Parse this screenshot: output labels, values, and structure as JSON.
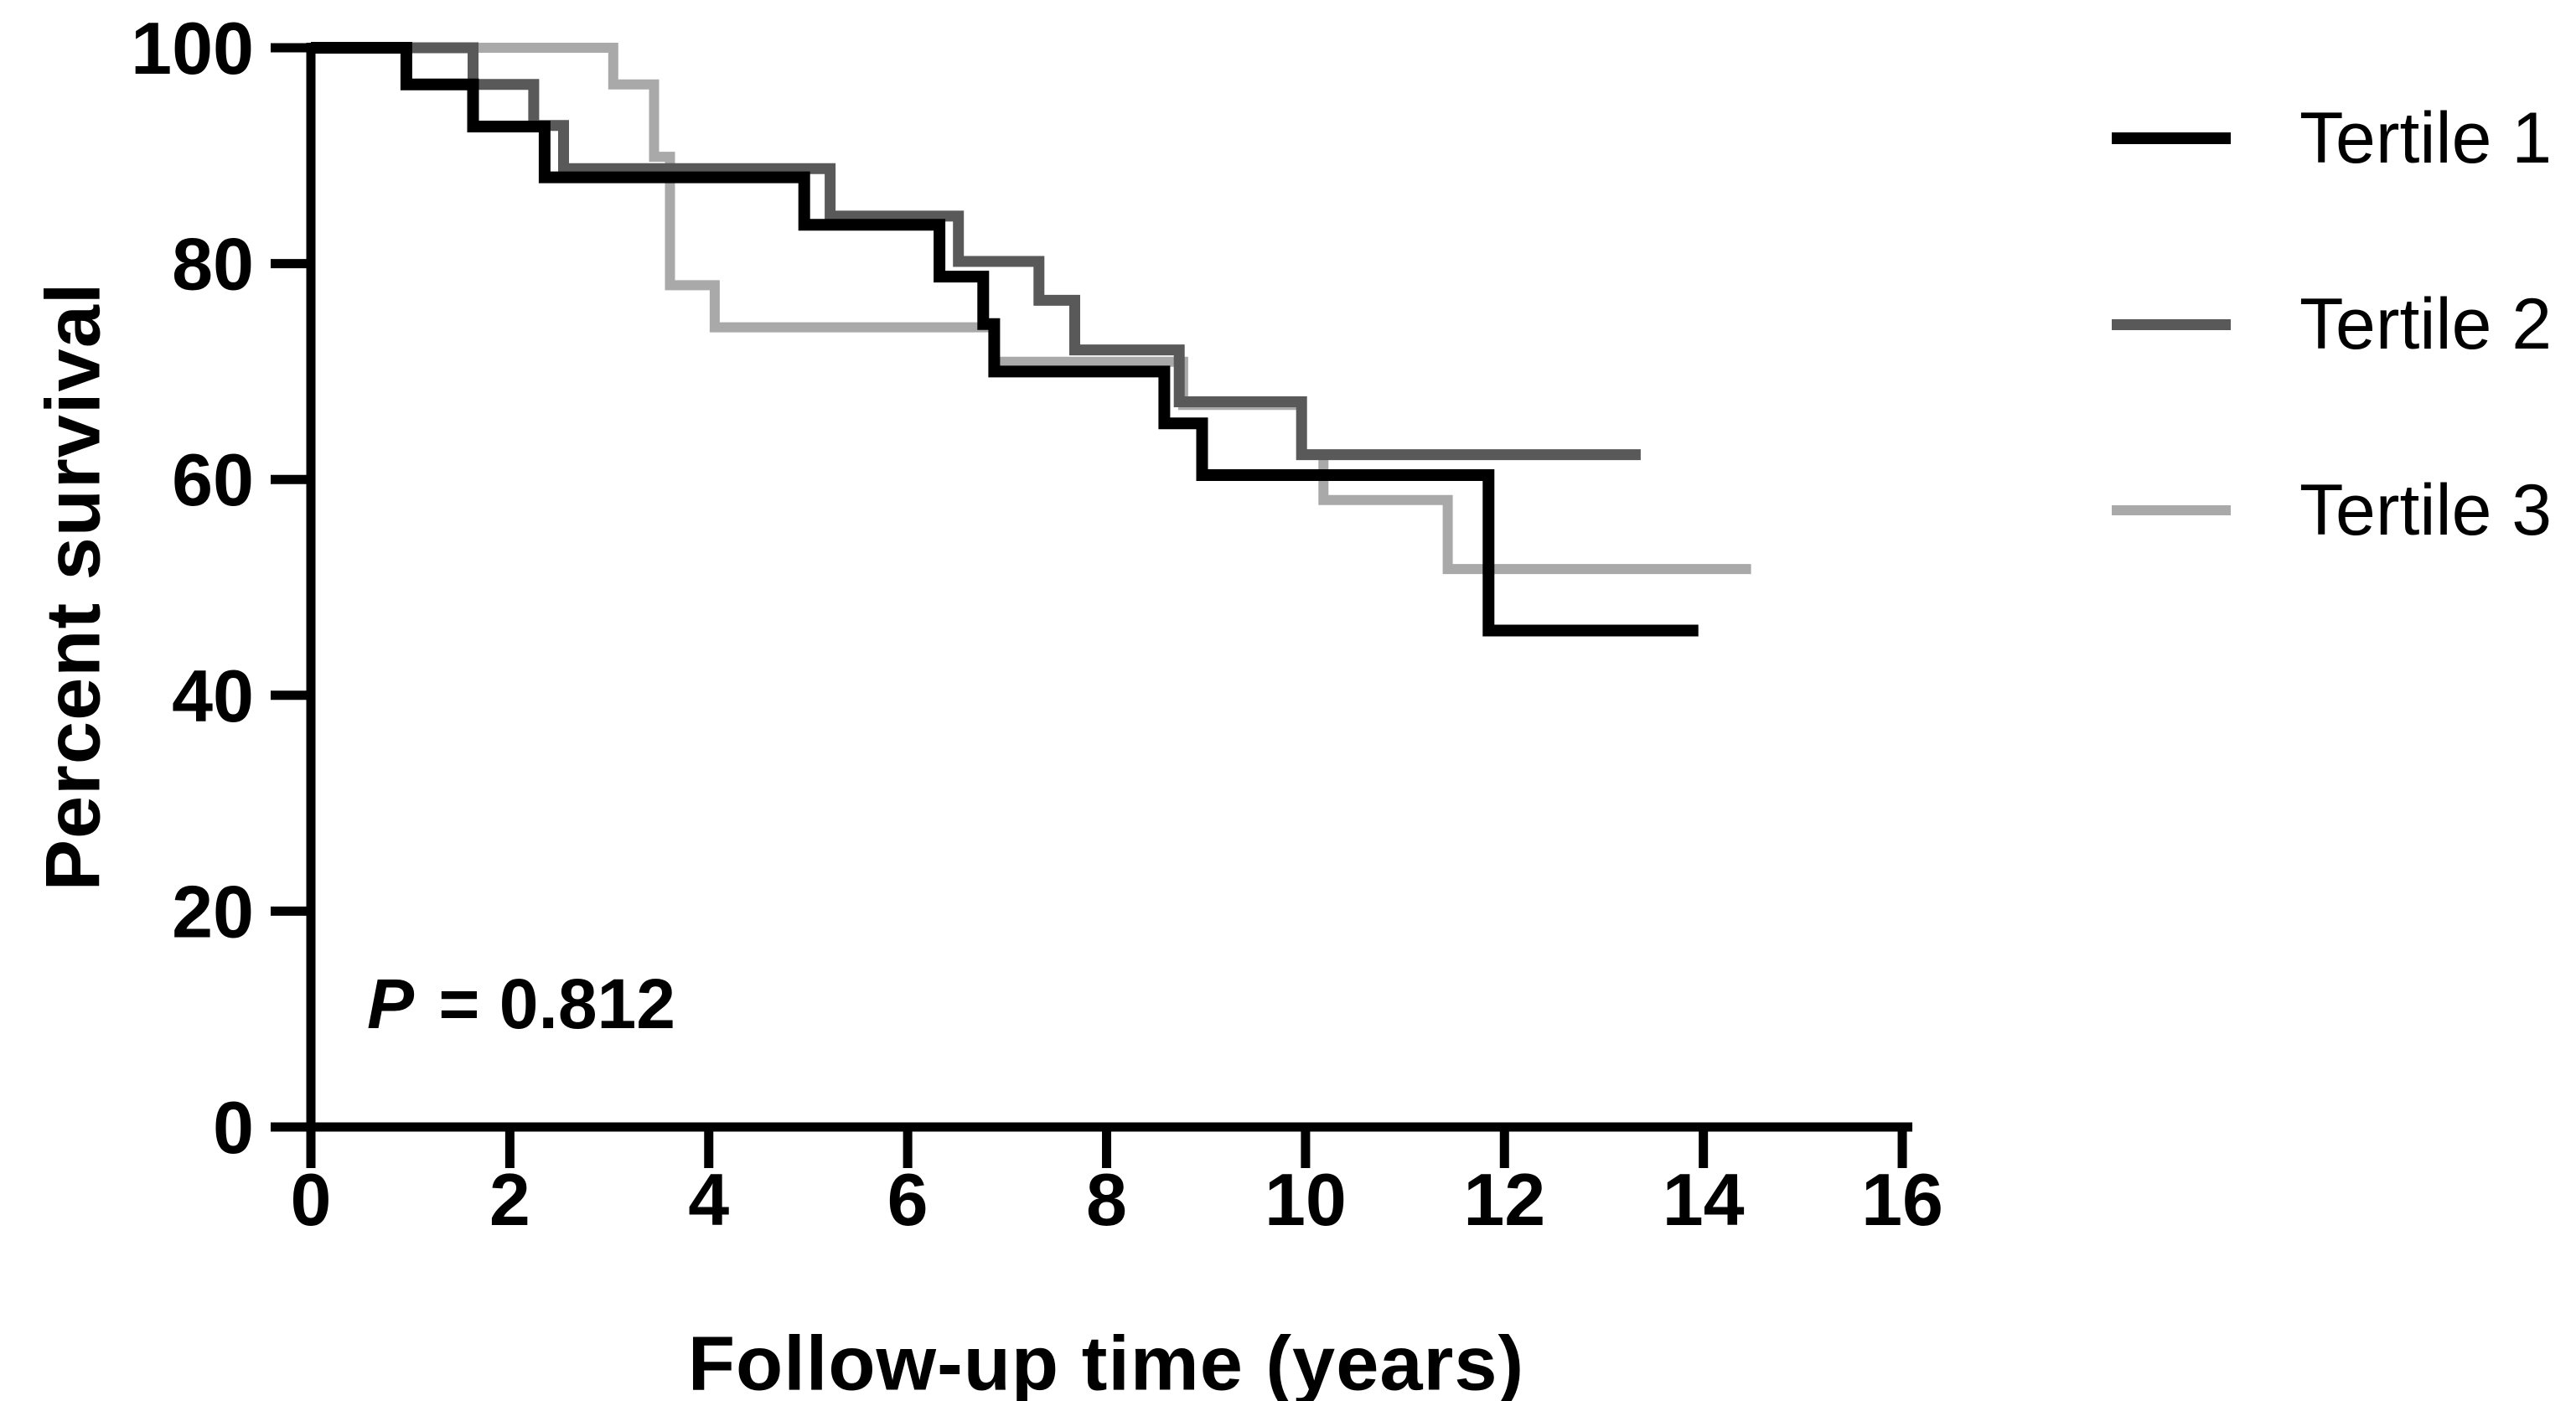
{
  "chart_data": {
    "type": "line",
    "subtype": "kaplan-meier-step-survival",
    "title": "",
    "xlabel": "Follow-up time (years)",
    "ylabel": "Percent survival",
    "xlim": [
      0,
      16
    ],
    "ylim": [
      0,
      100
    ],
    "x_ticks": [
      0,
      2,
      4,
      6,
      8,
      10,
      12,
      14,
      16
    ],
    "y_ticks": [
      0,
      20,
      40,
      60,
      80,
      100
    ],
    "grid": false,
    "legend_position": "outside-top-right",
    "axis_color": "#000000",
    "annotation": {
      "p_symbol": "P",
      "p_rest": " = 0.812"
    },
    "series": [
      {
        "name": "Tertile 1",
        "color": "#000000",
        "line_width": 14,
        "points": [
          [
            0,
            100
          ],
          [
            0.96,
            100
          ],
          [
            0.96,
            96.6
          ],
          [
            1.63,
            96.6
          ],
          [
            1.63,
            92.7
          ],
          [
            2.35,
            92.7
          ],
          [
            2.35,
            88.0
          ],
          [
            4.96,
            88.0
          ],
          [
            4.96,
            83.6
          ],
          [
            6.32,
            83.6
          ],
          [
            6.32,
            78.8
          ],
          [
            6.76,
            78.8
          ],
          [
            6.76,
            74.4
          ],
          [
            6.87,
            74.4
          ],
          [
            6.87,
            70.0
          ],
          [
            8.58,
            70.0
          ],
          [
            8.58,
            65.2
          ],
          [
            8.96,
            65.2
          ],
          [
            8.96,
            60.4
          ],
          [
            11.84,
            60.4
          ],
          [
            11.84,
            46.0
          ],
          [
            13.95,
            46.0
          ]
        ]
      },
      {
        "name": "Tertile 2",
        "color": "#595959",
        "line_width": 13,
        "points": [
          [
            0,
            100
          ],
          [
            1.63,
            100
          ],
          [
            1.63,
            96.6
          ],
          [
            2.24,
            96.6
          ],
          [
            2.24,
            92.8
          ],
          [
            2.54,
            92.8
          ],
          [
            2.54,
            88.8
          ],
          [
            5.22,
            88.8
          ],
          [
            5.22,
            84.4
          ],
          [
            6.51,
            84.4
          ],
          [
            6.51,
            80.2
          ],
          [
            7.32,
            80.2
          ],
          [
            7.32,
            76.6
          ],
          [
            7.68,
            76.6
          ],
          [
            7.68,
            72.0
          ],
          [
            8.73,
            72.0
          ],
          [
            8.73,
            67.2
          ],
          [
            9.96,
            67.2
          ],
          [
            9.96,
            62.3
          ],
          [
            13.37,
            62.3
          ]
        ]
      },
      {
        "name": "Tertile 3",
        "color": "#a9a9a9",
        "line_width": 12,
        "points": [
          [
            0,
            100
          ],
          [
            3.04,
            100
          ],
          [
            3.04,
            96.6
          ],
          [
            3.45,
            96.6
          ],
          [
            3.45,
            89.9
          ],
          [
            3.61,
            89.9
          ],
          [
            3.61,
            78.0
          ],
          [
            4.06,
            78.0
          ],
          [
            4.06,
            74.1
          ],
          [
            6.87,
            74.1
          ],
          [
            6.87,
            70.9
          ],
          [
            8.77,
            70.9
          ],
          [
            8.77,
            66.9
          ],
          [
            9.96,
            66.9
          ],
          [
            9.96,
            62.3
          ],
          [
            10.18,
            62.3
          ],
          [
            10.18,
            58.1
          ],
          [
            11.43,
            58.1
          ],
          [
            11.43,
            51.7
          ],
          [
            14.48,
            51.7
          ]
        ]
      }
    ]
  }
}
